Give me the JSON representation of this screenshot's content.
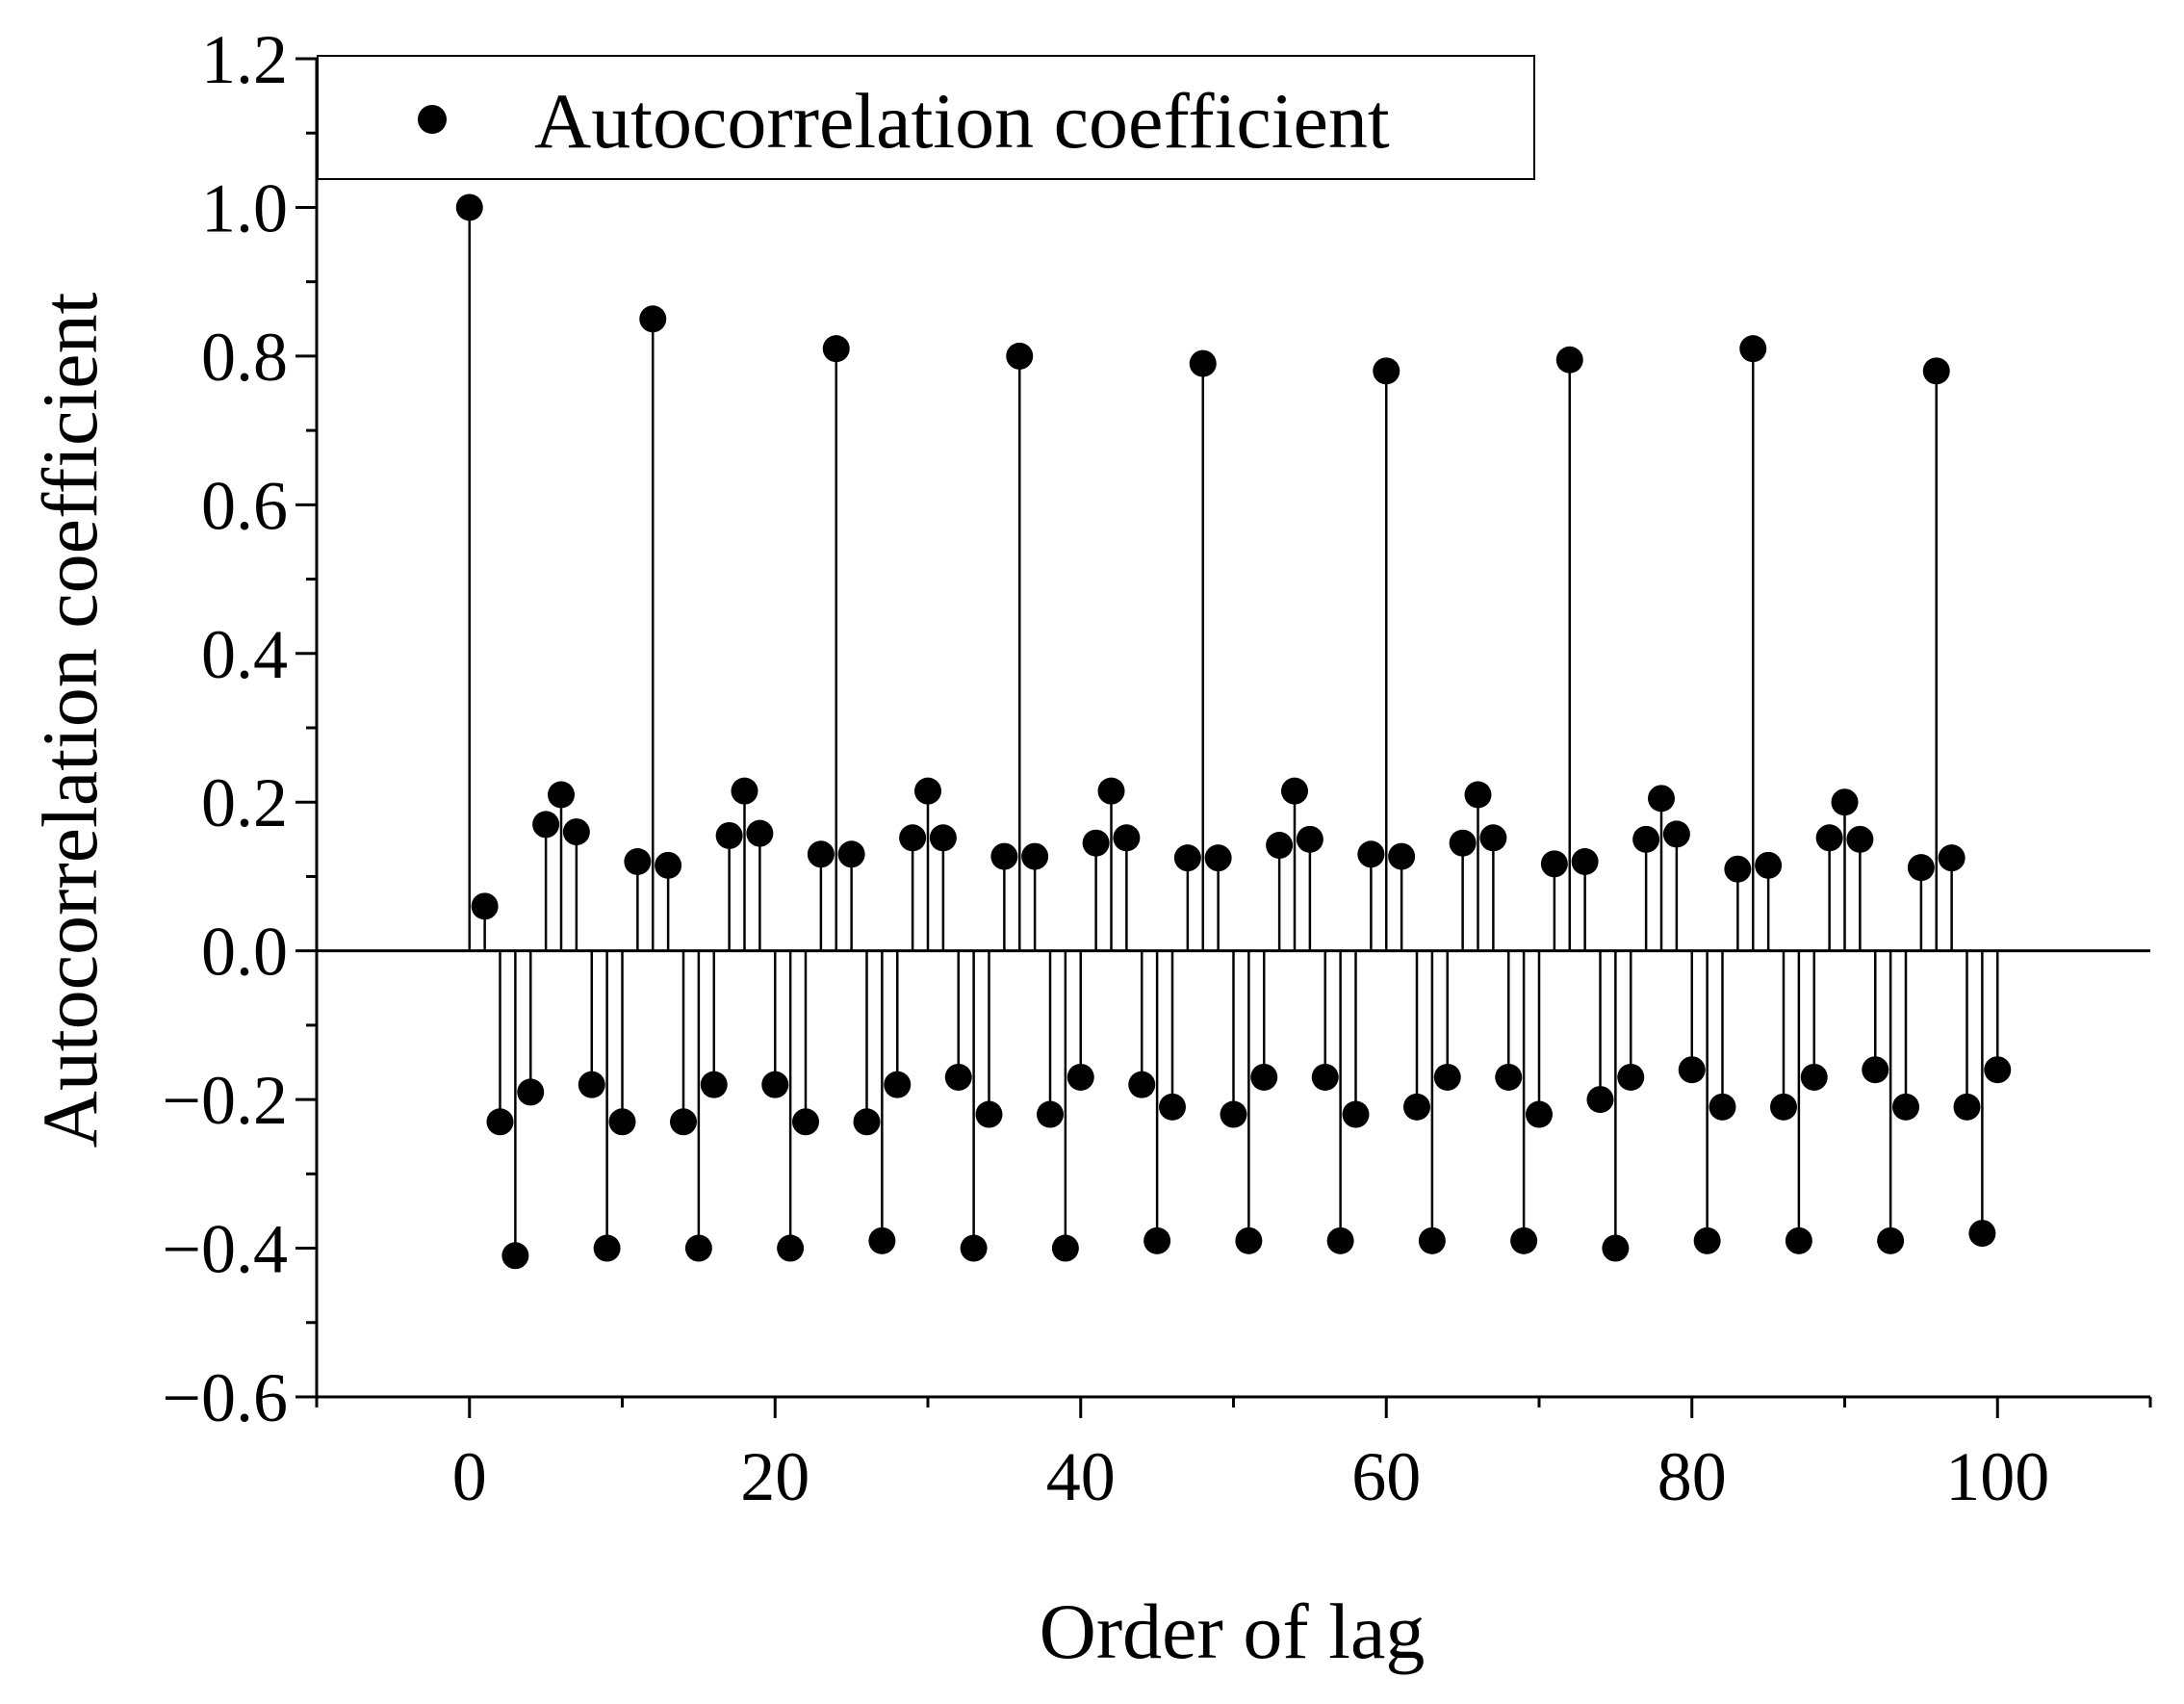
{
  "chart_data": {
    "type": "scatter",
    "style": "stem",
    "title": "",
    "xlabel": "Order of lag",
    "ylabel": "Autocorrelation coefficient",
    "xlim": [
      -10,
      110
    ],
    "ylim": [
      -0.6,
      1.2
    ],
    "xticks": [
      0,
      20,
      40,
      60,
      80,
      100
    ],
    "xtick_labels": [
      "0",
      "20",
      "40",
      "60",
      "80",
      "100"
    ],
    "yticks": [
      -0.6,
      -0.4,
      -0.2,
      0.0,
      0.2,
      0.4,
      0.6,
      0.8,
      1.0,
      1.2
    ],
    "ytick_labels": [
      "−0.6",
      "−0.4",
      "−0.2",
      "0.0",
      "0.2",
      "0.4",
      "0.6",
      "0.8",
      "1.0",
      "1.2"
    ],
    "grid": false,
    "legend": {
      "position": "top-left",
      "entries": [
        "Autocorrelation coefficient"
      ]
    },
    "marker_color": "#000000",
    "series": [
      {
        "name": "Autocorrelation coefficient",
        "x": [
          0,
          1,
          2,
          3,
          4,
          5,
          6,
          7,
          8,
          9,
          10,
          11,
          12,
          13,
          14,
          15,
          16,
          17,
          18,
          19,
          20,
          21,
          22,
          23,
          24,
          25,
          26,
          27,
          28,
          29,
          30,
          31,
          32,
          33,
          34,
          35,
          36,
          37,
          38,
          39,
          40,
          41,
          42,
          43,
          44,
          45,
          46,
          47,
          48,
          49,
          50,
          51,
          52,
          53,
          54,
          55,
          56,
          57,
          58,
          59,
          60,
          61,
          62,
          63,
          64,
          65,
          66,
          67,
          68,
          69,
          70,
          71,
          72,
          73,
          74,
          75,
          76,
          77,
          78,
          79,
          80,
          81,
          82,
          83,
          84,
          85,
          86,
          87,
          88,
          89,
          90,
          91,
          92,
          93,
          94,
          95,
          96,
          97,
          98,
          99,
          100
        ],
        "y": [
          1.0,
          0.06,
          -0.23,
          -0.41,
          -0.19,
          0.17,
          0.21,
          0.16,
          -0.18,
          -0.4,
          -0.23,
          0.12,
          0.85,
          0.115,
          -0.23,
          -0.4,
          -0.18,
          0.155,
          0.215,
          0.158,
          -0.18,
          -0.4,
          -0.23,
          0.13,
          0.81,
          0.13,
          -0.23,
          -0.39,
          -0.18,
          0.152,
          0.215,
          0.152,
          -0.17,
          -0.4,
          -0.22,
          0.127,
          0.8,
          0.127,
          -0.22,
          -0.4,
          -0.17,
          0.145,
          0.215,
          0.152,
          -0.18,
          -0.39,
          -0.21,
          0.125,
          0.79,
          0.125,
          -0.22,
          -0.39,
          -0.17,
          0.142,
          0.215,
          0.15,
          -0.17,
          -0.39,
          -0.22,
          0.13,
          0.78,
          0.127,
          -0.21,
          -0.39,
          -0.17,
          0.145,
          0.21,
          0.152,
          -0.17,
          -0.39,
          -0.22,
          0.117,
          0.795,
          0.12,
          -0.2,
          -0.4,
          -0.17,
          0.15,
          0.205,
          0.157,
          -0.16,
          -0.39,
          -0.21,
          0.11,
          0.81,
          0.115,
          -0.21,
          -0.39,
          -0.17,
          0.152,
          0.2,
          0.15,
          -0.16,
          -0.39,
          -0.21,
          0.112,
          0.78,
          0.125,
          -0.21,
          -0.38,
          -0.16
        ]
      }
    ]
  }
}
